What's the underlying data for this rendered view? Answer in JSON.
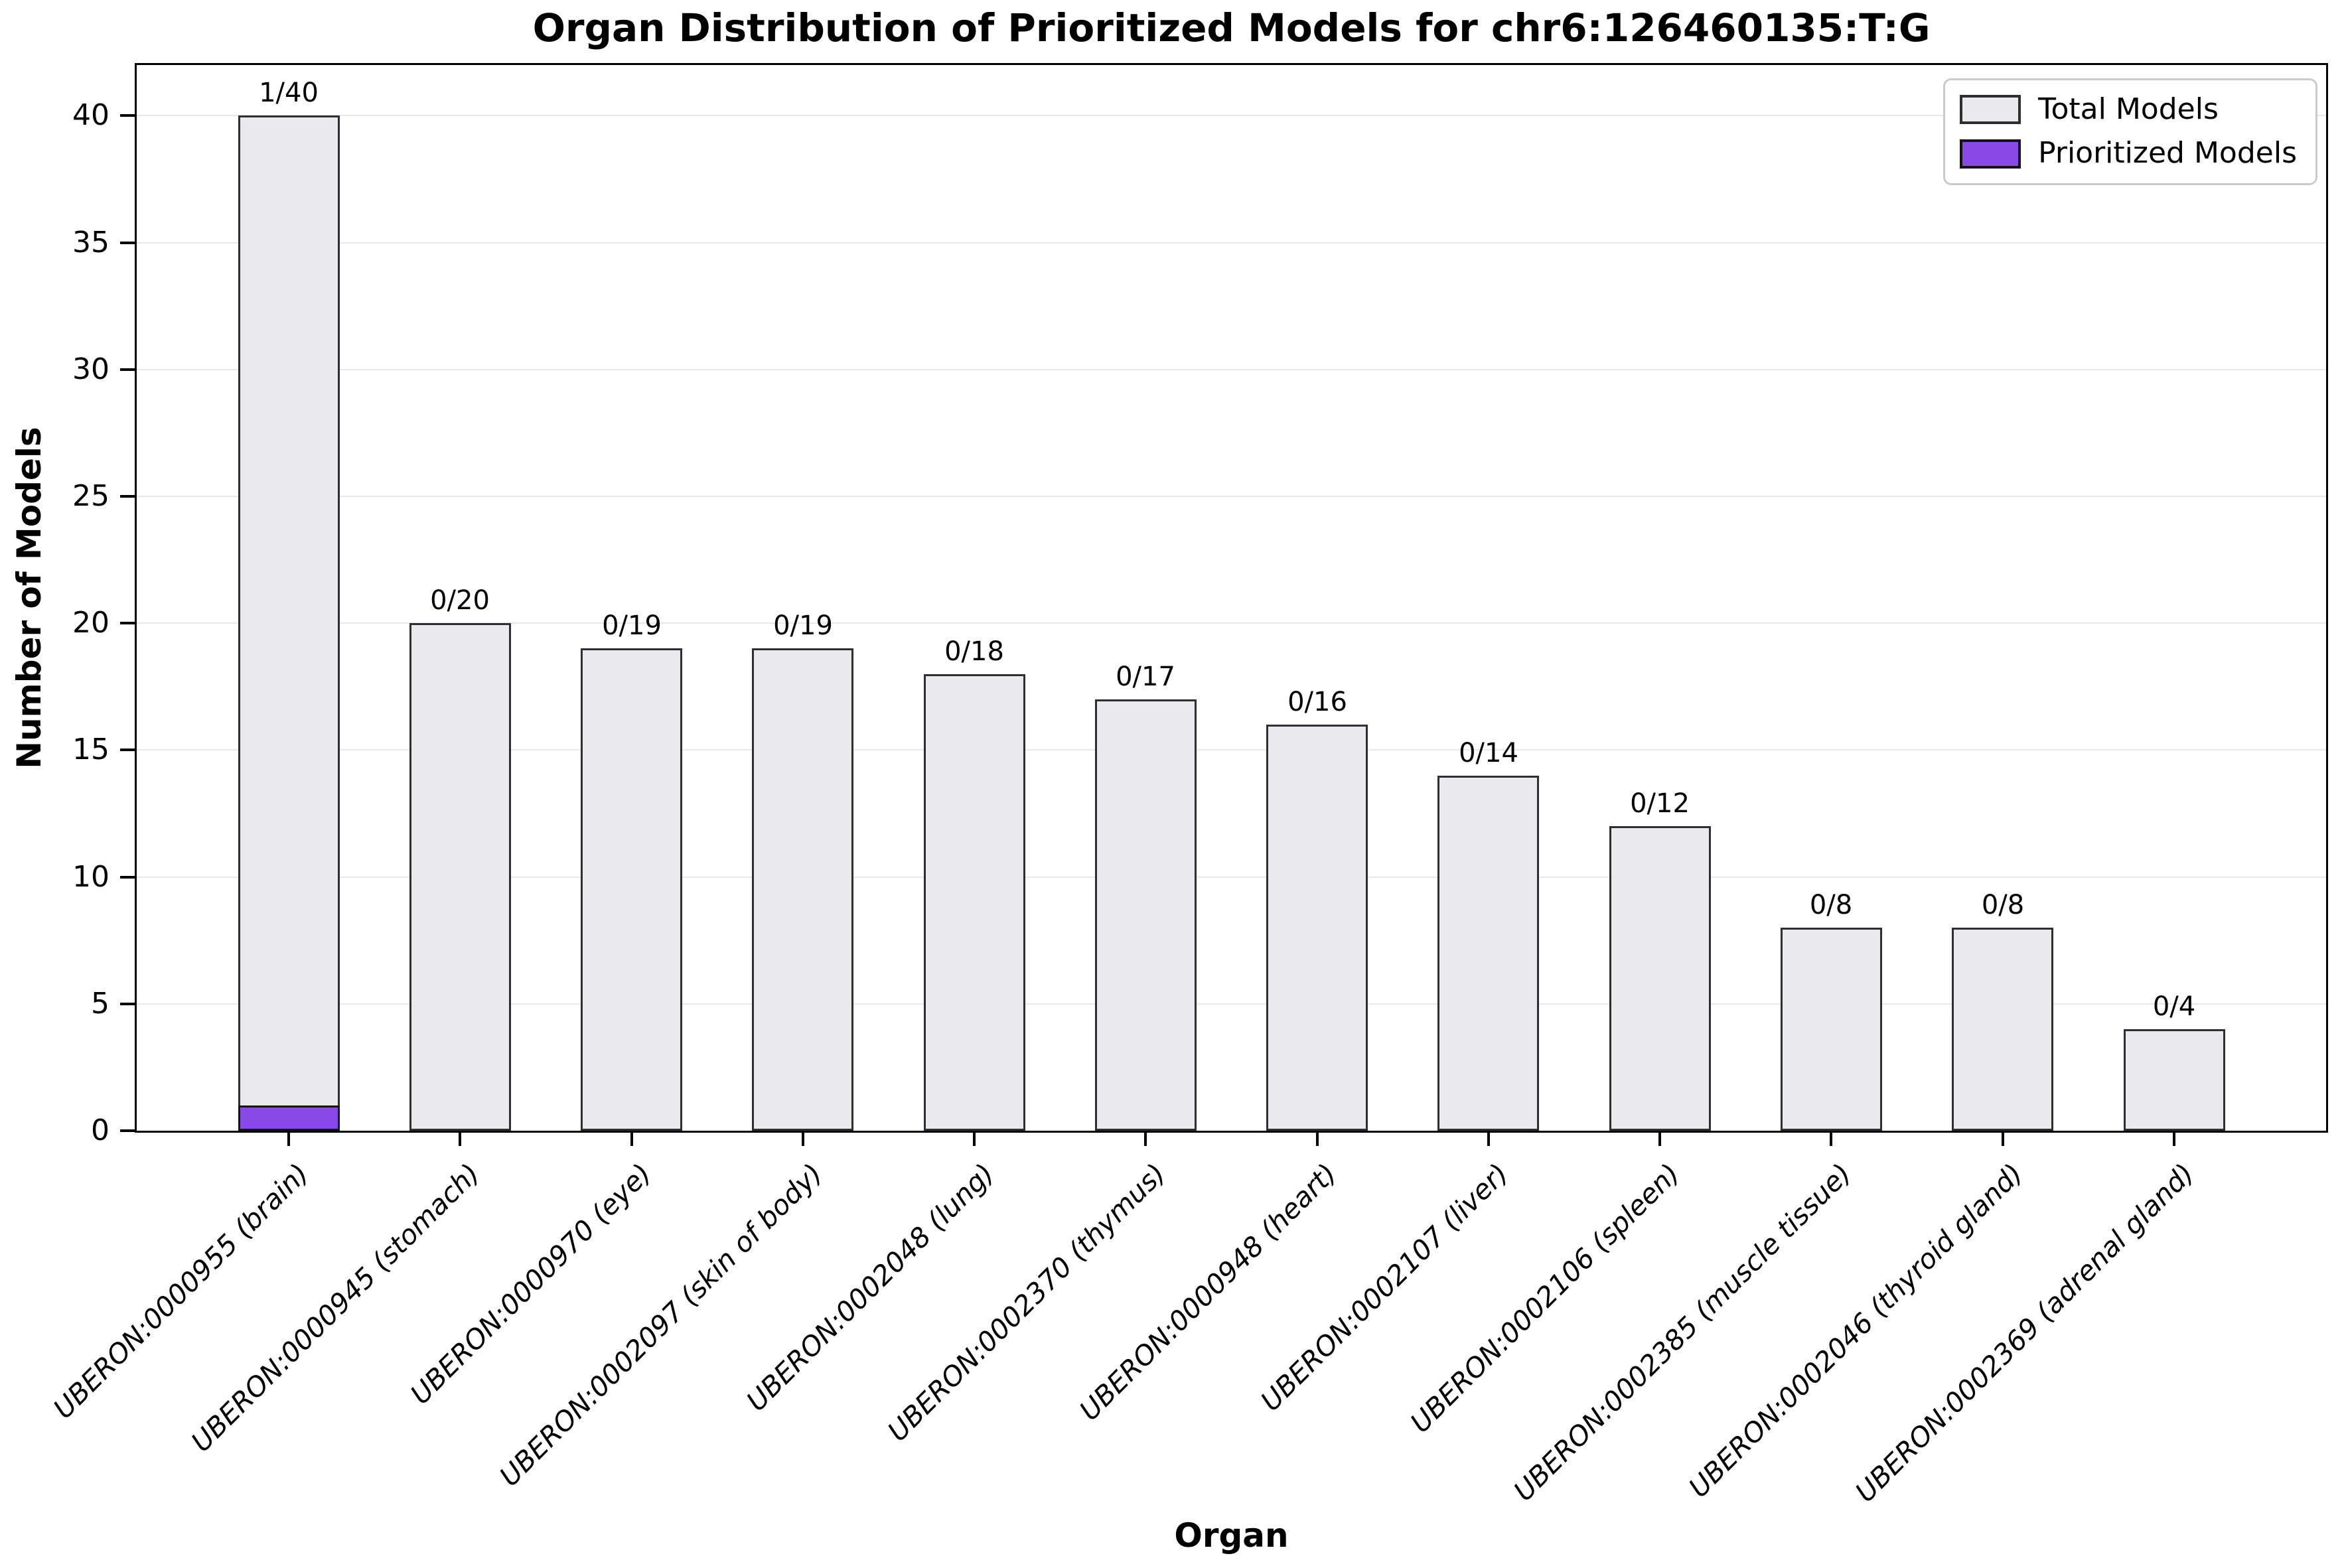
{
  "title": "Organ Distribution of Prioritized Models for chr6:126460135:T:G",
  "xlabel": "Organ",
  "ylabel": "Number of Models",
  "legend": [
    {
      "label": "Total Models",
      "fill": "#e9e9ee",
      "edge": "#2e2e33"
    },
    {
      "label": "Prioritized Models",
      "fill": "#8849e8",
      "edge": "#141414"
    }
  ],
  "chart_data": {
    "type": "bar",
    "title": "Organ Distribution of Prioritized Models for chr6:126460135:T:G",
    "xlabel": "Organ",
    "ylabel": "Number of Models",
    "categories": [
      "UBERON:0000955 (brain)",
      "UBERON:0000945 (stomach)",
      "UBERON:0000970 (eye)",
      "UBERON:0002097 (skin of body)",
      "UBERON:0002048 (lung)",
      "UBERON:0002370 (thymus)",
      "UBERON:0000948 (heart)",
      "UBERON:0002107 (liver)",
      "UBERON:0002106 (spleen)",
      "UBERON:0002385 (muscle tissue)",
      "UBERON:0002046 (thyroid gland)",
      "UBERON:0002369 (adrenal gland)"
    ],
    "series": [
      {
        "name": "Total Models",
        "values": [
          40,
          20,
          19,
          19,
          18,
          17,
          16,
          14,
          12,
          8,
          8,
          4
        ],
        "fill": "#e9e9ee",
        "edge": "#2e2e33"
      },
      {
        "name": "Prioritized Models",
        "values": [
          1,
          0,
          0,
          0,
          0,
          0,
          0,
          0,
          0,
          0,
          0,
          0
        ],
        "fill": "#8849e8",
        "edge": "#141414"
      }
    ],
    "annotations": [
      "1/40",
      "0/20",
      "0/19",
      "0/19",
      "0/18",
      "0/17",
      "0/16",
      "0/14",
      "0/12",
      "0/8",
      "0/8",
      "0/4"
    ],
    "yticks": [
      0,
      5,
      10,
      15,
      20,
      25,
      30,
      35,
      40
    ],
    "ylim": [
      0,
      42
    ],
    "grid": true,
    "grid_color": "#e8e8e8",
    "legend_position": "upper right"
  }
}
